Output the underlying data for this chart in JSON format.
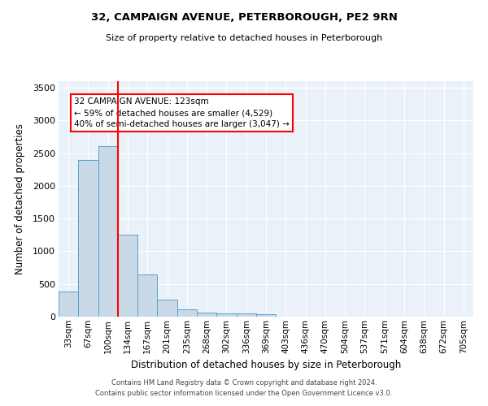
{
  "title1": "32, CAMPAIGN AVENUE, PETERBOROUGH, PE2 9RN",
  "title2": "Size of property relative to detached houses in Peterborough",
  "xlabel": "Distribution of detached houses by size in Peterborough",
  "ylabel": "Number of detached properties",
  "categories": [
    "33sqm",
    "67sqm",
    "100sqm",
    "134sqm",
    "167sqm",
    "201sqm",
    "235sqm",
    "268sqm",
    "302sqm",
    "336sqm",
    "369sqm",
    "403sqm",
    "436sqm",
    "470sqm",
    "504sqm",
    "537sqm",
    "571sqm",
    "604sqm",
    "638sqm",
    "672sqm",
    "705sqm"
  ],
  "values": [
    390,
    2390,
    2610,
    1250,
    650,
    265,
    110,
    60,
    55,
    50,
    35,
    0,
    0,
    0,
    0,
    0,
    0,
    0,
    0,
    0,
    0
  ],
  "bar_color": "#c9d9e8",
  "bar_edge_color": "#5a9fc8",
  "vline_x_index": 2.5,
  "vline_color": "red",
  "annotation_text": "32 CAMPAIGN AVENUE: 123sqm\n← 59% of detached houses are smaller (4,529)\n40% of semi-detached houses are larger (3,047) →",
  "annotation_box_color": "white",
  "annotation_box_edge_color": "red",
  "ylim": [
    0,
    3600
  ],
  "yticks": [
    0,
    500,
    1000,
    1500,
    2000,
    2500,
    3000,
    3500
  ],
  "bg_color": "#eaf1f8",
  "grid_color": "white",
  "footer1": "Contains HM Land Registry data © Crown copyright and database right 2024.",
  "footer2": "Contains public sector information licensed under the Open Government Licence v3.0."
}
